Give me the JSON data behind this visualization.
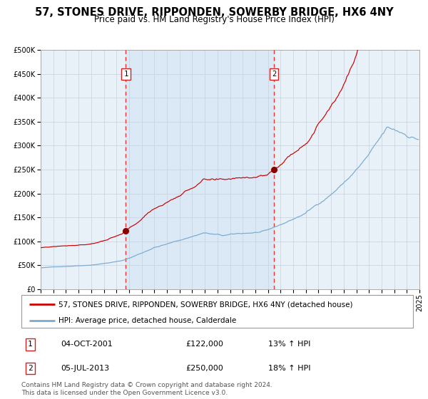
{
  "title": "57, STONES DRIVE, RIPPONDEN, SOWERBY BRIDGE, HX6 4NY",
  "subtitle": "Price paid vs. HM Land Registry's House Price Index (HPI)",
  "ylim": [
    0,
    500000
  ],
  "yticks": [
    0,
    50000,
    100000,
    150000,
    200000,
    250000,
    300000,
    350000,
    400000,
    450000,
    500000
  ],
  "year_start": 1995,
  "year_end": 2025,
  "plot_bg_color": "#e8f0f8",
  "grid_color": "#c8d0dc",
  "red_line_color": "#cc0000",
  "blue_line_color": "#7aaad0",
  "shade_color": "#d8e8f5",
  "dashed_line_color": "#ee3333",
  "marker_color": "#880000",
  "sale1_year": 2001.75,
  "sale1_value": 122000,
  "sale2_year": 2013.5,
  "sale2_value": 250000,
  "legend_red": "57, STONES DRIVE, RIPPONDEN, SOWERBY BRIDGE, HX6 4NY (detached house)",
  "legend_blue": "HPI: Average price, detached house, Calderdale",
  "table_row1": [
    "1",
    "04-OCT-2001",
    "£122,000",
    "13% ↑ HPI"
  ],
  "table_row2": [
    "2",
    "05-JUL-2013",
    "£250,000",
    "18% ↑ HPI"
  ],
  "footer": "Contains HM Land Registry data © Crown copyright and database right 2024.\nThis data is licensed under the Open Government Licence v3.0.",
  "title_fontsize": 10.5,
  "subtitle_fontsize": 8.5,
  "tick_fontsize": 7,
  "legend_fontsize": 7.5,
  "table_fontsize": 8,
  "footer_fontsize": 6.5
}
